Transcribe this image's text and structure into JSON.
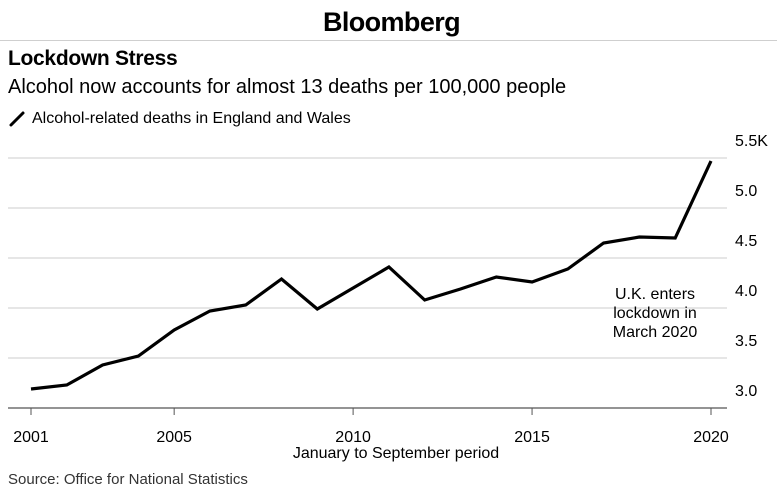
{
  "header": {
    "brand": "Bloomberg"
  },
  "title": "Lockdown Stress",
  "subtitle": "Alcohol now accounts for almost 13 deaths per 100,000 people",
  "legend": {
    "label": "Alcohol-related deaths in England and Wales"
  },
  "source": "Source: Office for National Statistics",
  "colors": {
    "line": "#000000",
    "grid": "#cccccc",
    "axis": "#555555"
  },
  "chart_data": {
    "type": "line",
    "title": "Lockdown Stress",
    "subtitle": "Alcohol now accounts for almost 13 deaths per 100,000 people",
    "xlabel": "January to September period",
    "ylabel": "",
    "x": [
      2001,
      2002,
      2003,
      2004,
      2005,
      2006,
      2007,
      2008,
      2009,
      2010,
      2011,
      2012,
      2013,
      2014,
      2015,
      2016,
      2017,
      2018,
      2019,
      2020
    ],
    "series": [
      {
        "name": "Alcohol-related deaths in England and Wales",
        "values": [
          3.19,
          3.23,
          3.43,
          3.52,
          3.78,
          3.97,
          4.03,
          4.29,
          3.99,
          4.2,
          4.41,
          4.08,
          4.19,
          4.31,
          4.26,
          4.39,
          4.65,
          4.71,
          4.7,
          5.47
        ]
      }
    ],
    "xlim": [
      2001,
      2020
    ],
    "ylim": [
      3.0,
      5.5
    ],
    "x_ticks": [
      {
        "value": 2001,
        "label": "2001"
      },
      {
        "value": 2005,
        "label": "2005"
      },
      {
        "value": 2010,
        "label": "2010"
      },
      {
        "value": 2015,
        "label": "2015"
      },
      {
        "value": 2020,
        "label": "2020"
      }
    ],
    "y_ticks": [
      {
        "value": 3.0,
        "label": "3.0"
      },
      {
        "value": 3.5,
        "label": "3.5"
      },
      {
        "value": 4.0,
        "label": "4.0"
      },
      {
        "value": 4.5,
        "label": "4.5"
      },
      {
        "value": 5.0,
        "label": "5.0"
      },
      {
        "value": 5.5,
        "label": "5.5K"
      }
    ],
    "annotation": {
      "lines": [
        "U.K. enters",
        "lockdown in",
        "March 2020"
      ]
    },
    "grid": true,
    "y_axis_side": "right",
    "legend_position": "top-left"
  }
}
